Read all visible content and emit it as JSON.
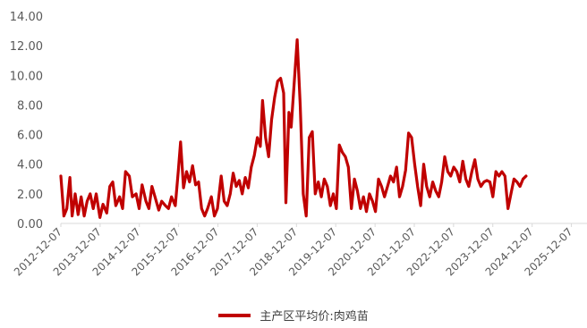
{
  "chart_data": {
    "type": "line",
    "title": "",
    "xlabel": "",
    "ylabel": "",
    "ylim": [
      0,
      14
    ],
    "y_ticks": [
      "0.00",
      "2.00",
      "4.00",
      "6.00",
      "8.00",
      "10.00",
      "12.00",
      "14.00"
    ],
    "x_ticks": [
      "2012-12-07",
      "2013-12-07",
      "2014-12-07",
      "2015-12-07",
      "2016-12-07",
      "2017-12-07",
      "2018-12-07",
      "2019-12-07",
      "2020-12-07",
      "2021-12-07",
      "2022-12-07",
      "2023-12-07",
      "2024-12-07",
      "2025-12-07"
    ],
    "x_range": [
      "2012-12-07",
      "2026-05-01"
    ],
    "grid": false,
    "legend_position": "bottom",
    "colors": {
      "series": "#c00000"
    },
    "series": [
      {
        "name": "主产区平均价:肉鸡苗",
        "points": [
          [
            "2012-12-07",
            3.2
          ],
          [
            "2013-01-04",
            0.5
          ],
          [
            "2013-02-01",
            1.0
          ],
          [
            "2013-03-01",
            3.1
          ],
          [
            "2013-03-22",
            0.5
          ],
          [
            "2013-04-19",
            2.0
          ],
          [
            "2013-05-17",
            0.6
          ],
          [
            "2013-06-14",
            1.8
          ],
          [
            "2013-07-12",
            0.5
          ],
          [
            "2013-08-09",
            1.5
          ],
          [
            "2013-09-06",
            2.0
          ],
          [
            "2013-10-04",
            1.0
          ],
          [
            "2013-11-01",
            2.0
          ],
          [
            "2013-12-06",
            0.4
          ],
          [
            "2014-01-03",
            1.3
          ],
          [
            "2014-02-07",
            0.7
          ],
          [
            "2014-03-07",
            2.5
          ],
          [
            "2014-04-04",
            2.8
          ],
          [
            "2014-05-02",
            1.2
          ],
          [
            "2014-06-06",
            1.8
          ],
          [
            "2014-07-04",
            1.0
          ],
          [
            "2014-08-01",
            3.5
          ],
          [
            "2014-09-05",
            3.2
          ],
          [
            "2014-10-03",
            1.8
          ],
          [
            "2014-11-07",
            2.0
          ],
          [
            "2014-12-05",
            1.0
          ],
          [
            "2015-01-02",
            2.6
          ],
          [
            "2015-02-06",
            1.5
          ],
          [
            "2015-03-06",
            1.0
          ],
          [
            "2015-04-03",
            2.5
          ],
          [
            "2015-05-01",
            1.8
          ],
          [
            "2015-06-05",
            0.9
          ],
          [
            "2015-07-03",
            1.5
          ],
          [
            "2015-08-07",
            1.2
          ],
          [
            "2015-09-04",
            1.0
          ],
          [
            "2015-10-02",
            1.8
          ],
          [
            "2015-11-06",
            1.2
          ],
          [
            "2015-12-04",
            3.5
          ],
          [
            "2015-12-25",
            5.5
          ],
          [
            "2016-01-22",
            2.4
          ],
          [
            "2016-02-19",
            3.5
          ],
          [
            "2016-03-18",
            2.8
          ],
          [
            "2016-04-15",
            3.9
          ],
          [
            "2016-05-13",
            2.6
          ],
          [
            "2016-06-10",
            2.8
          ],
          [
            "2016-07-08",
            1.0
          ],
          [
            "2016-08-05",
            0.5
          ],
          [
            "2016-09-02",
            1.0
          ],
          [
            "2016-10-07",
            1.8
          ],
          [
            "2016-11-04",
            0.5
          ],
          [
            "2016-12-02",
            1.0
          ],
          [
            "2017-01-06",
            3.2
          ],
          [
            "2017-02-03",
            1.5
          ],
          [
            "2017-03-03",
            1.2
          ],
          [
            "2017-03-31",
            2.0
          ],
          [
            "2017-04-28",
            3.4
          ],
          [
            "2017-05-26",
            2.5
          ],
          [
            "2017-06-23",
            2.9
          ],
          [
            "2017-07-21",
            2.0
          ],
          [
            "2017-08-18",
            3.1
          ],
          [
            "2017-09-15",
            2.4
          ],
          [
            "2017-10-13",
            3.8
          ],
          [
            "2017-11-10",
            4.6
          ],
          [
            "2017-12-08",
            5.8
          ],
          [
            "2018-01-05",
            5.2
          ],
          [
            "2018-01-26",
            8.3
          ],
          [
            "2018-02-23",
            5.8
          ],
          [
            "2018-03-23",
            4.5
          ],
          [
            "2018-04-20",
            7.0
          ],
          [
            "2018-05-18",
            8.5
          ],
          [
            "2018-06-15",
            9.6
          ],
          [
            "2018-07-13",
            9.8
          ],
          [
            "2018-08-10",
            8.8
          ],
          [
            "2018-08-31",
            1.4
          ],
          [
            "2018-09-28",
            7.5
          ],
          [
            "2018-10-19",
            6.5
          ],
          [
            "2018-11-16",
            9.5
          ],
          [
            "2018-12-14",
            12.4
          ],
          [
            "2019-01-11",
            8.0
          ],
          [
            "2019-02-08",
            2.0
          ],
          [
            "2019-03-08",
            0.5
          ],
          [
            "2019-04-05",
            5.8
          ],
          [
            "2019-05-03",
            6.2
          ],
          [
            "2019-05-31",
            2.0
          ],
          [
            "2019-06-28",
            2.8
          ],
          [
            "2019-07-26",
            1.8
          ],
          [
            "2019-08-23",
            3.0
          ],
          [
            "2019-09-20",
            2.5
          ],
          [
            "2019-10-18",
            1.2
          ],
          [
            "2019-11-15",
            2.0
          ],
          [
            "2019-12-13",
            1.0
          ],
          [
            "2020-01-10",
            5.3
          ],
          [
            "2020-02-07",
            4.8
          ],
          [
            "2020-03-06",
            4.5
          ],
          [
            "2020-04-03",
            3.8
          ],
          [
            "2020-05-01",
            1.0
          ],
          [
            "2020-05-29",
            3.0
          ],
          [
            "2020-06-26",
            2.2
          ],
          [
            "2020-07-24",
            1.0
          ],
          [
            "2020-08-21",
            1.8
          ],
          [
            "2020-09-18",
            0.8
          ],
          [
            "2020-10-16",
            2.0
          ],
          [
            "2020-11-13",
            1.5
          ],
          [
            "2020-12-11",
            0.8
          ],
          [
            "2021-01-08",
            3.0
          ],
          [
            "2021-02-05",
            2.5
          ],
          [
            "2021-03-05",
            1.8
          ],
          [
            "2021-04-02",
            2.5
          ],
          [
            "2021-04-30",
            3.2
          ],
          [
            "2021-05-28",
            2.8
          ],
          [
            "2021-06-25",
            3.8
          ],
          [
            "2021-07-23",
            1.8
          ],
          [
            "2021-08-20",
            2.5
          ],
          [
            "2021-09-17",
            3.6
          ],
          [
            "2021-10-15",
            6.1
          ],
          [
            "2021-11-12",
            5.8
          ],
          [
            "2021-12-10",
            4.0
          ],
          [
            "2022-01-07",
            2.5
          ],
          [
            "2022-02-04",
            1.2
          ],
          [
            "2022-03-04",
            4.0
          ],
          [
            "2022-04-01",
            2.5
          ],
          [
            "2022-04-29",
            1.8
          ],
          [
            "2022-05-27",
            2.8
          ],
          [
            "2022-06-24",
            2.2
          ],
          [
            "2022-07-22",
            1.8
          ],
          [
            "2022-08-19",
            2.8
          ],
          [
            "2022-09-16",
            4.5
          ],
          [
            "2022-10-14",
            3.5
          ],
          [
            "2022-11-11",
            3.2
          ],
          [
            "2022-12-09",
            3.8
          ],
          [
            "2023-01-06",
            3.5
          ],
          [
            "2023-02-03",
            2.8
          ],
          [
            "2023-03-03",
            4.2
          ],
          [
            "2023-03-31",
            3.0
          ],
          [
            "2023-04-28",
            2.5
          ],
          [
            "2023-05-26",
            3.5
          ],
          [
            "2023-06-23",
            4.3
          ],
          [
            "2023-07-21",
            3.0
          ],
          [
            "2023-08-18",
            2.5
          ],
          [
            "2023-09-15",
            2.8
          ],
          [
            "2023-10-13",
            2.9
          ],
          [
            "2023-11-10",
            2.8
          ],
          [
            "2023-12-08",
            1.8
          ],
          [
            "2024-01-05",
            3.5
          ],
          [
            "2024-02-02",
            3.2
          ],
          [
            "2024-03-01",
            3.5
          ],
          [
            "2024-03-29",
            3.2
          ],
          [
            "2024-04-26",
            1.0
          ],
          [
            "2024-05-24",
            2.0
          ],
          [
            "2024-06-21",
            3.0
          ],
          [
            "2024-07-19",
            2.8
          ],
          [
            "2024-08-16",
            2.5
          ],
          [
            "2024-09-13",
            3.0
          ],
          [
            "2024-10-11",
            3.2
          ]
        ]
      }
    ]
  }
}
